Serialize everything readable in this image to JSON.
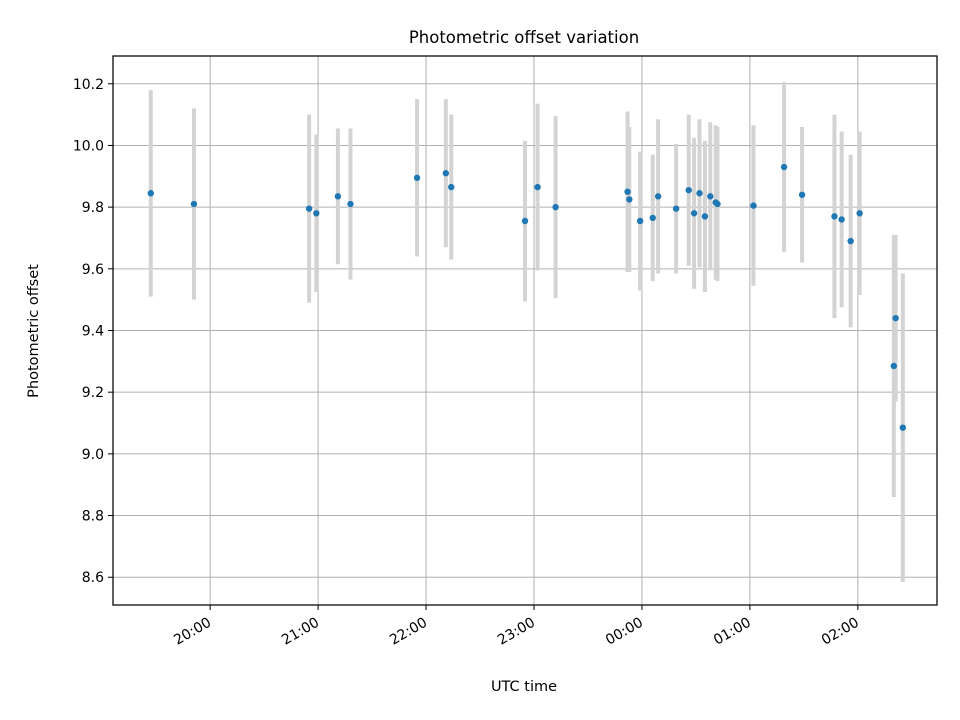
{
  "chart_data": {
    "type": "scatter",
    "title": "Photometric offset variation",
    "xlabel": "UTC time",
    "ylabel": "Photometric offset",
    "x_axis_kind": "time",
    "x_start_date": "",
    "xlim": [
      "19:06",
      "02:44"
    ],
    "ylim": [
      8.51,
      10.29
    ],
    "x_ticks": [
      "20:00",
      "21:00",
      "22:00",
      "23:00",
      "00:00",
      "01:00",
      "02:00"
    ],
    "y_ticks": [
      "8.6",
      "8.8",
      "9.0",
      "9.2",
      "9.4",
      "9.6",
      "9.8",
      "10.0",
      "10.2"
    ],
    "grid": true,
    "legend": "none",
    "colors": {
      "points": "#1f77b4",
      "error_bars": "#d3d3d3",
      "grid": "#b0b0b0"
    },
    "series": [
      {
        "x": [
          "19:27",
          "19:51",
          "20:55",
          "20:59",
          "21:11",
          "21:18",
          "21:55",
          "22:11",
          "22:14",
          "22:55",
          "23:02",
          "23:12",
          "23:52",
          "23:53",
          "23:59",
          "00:06",
          "00:09",
          "00:19",
          "00:26",
          "00:29",
          "00:32",
          "00:35",
          "00:38",
          "00:41",
          "00:42",
          "01:02",
          "01:19",
          "01:29",
          "01:47",
          "01:51",
          "01:56",
          "02:01",
          "02:20",
          "02:21",
          "02:25"
        ],
        "y": [
          9.845,
          9.81,
          9.795,
          9.78,
          9.835,
          9.81,
          9.895,
          9.91,
          9.865,
          9.755,
          9.865,
          9.8,
          9.85,
          9.825,
          9.755,
          9.765,
          9.835,
          9.795,
          9.855,
          9.78,
          9.845,
          9.77,
          9.835,
          9.815,
          9.81,
          9.805,
          9.93,
          9.84,
          9.77,
          9.76,
          9.69,
          9.78,
          9.285,
          9.44,
          9.085
        ],
        "yerr": [
          0.335,
          0.31,
          0.305,
          0.255,
          0.22,
          0.245,
          0.255,
          0.24,
          0.235,
          0.26,
          0.27,
          0.295,
          0.26,
          0.235,
          0.225,
          0.205,
          0.25,
          0.21,
          0.245,
          0.245,
          0.24,
          0.245,
          0.24,
          0.25,
          0.25,
          0.26,
          0.275,
          0.22,
          0.33,
          0.285,
          0.28,
          0.265,
          0.425,
          0.27,
          0.5
        ]
      }
    ]
  }
}
